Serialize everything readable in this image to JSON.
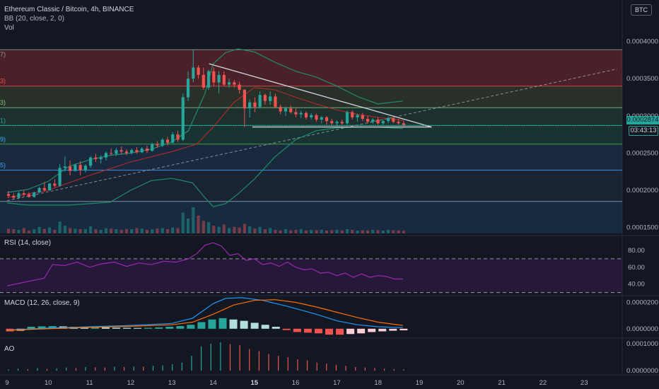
{
  "header": {
    "symbol": "Ethereum Classic / Bitcoin, 4h, BINANCE",
    "bb_legend": "BB (20, close, 2, 0)",
    "vol_legend": "Vol",
    "currency_badge": "BTC"
  },
  "panes": {
    "rsi_legend": "RSI (14, close)",
    "macd_legend": "MACD (12, 26, close, 9)",
    "ao_legend": "AO"
  },
  "fib_edge_labels": [
    "7)",
    "3)",
    "3)",
    "1)",
    "9)",
    "5)"
  ],
  "last_price": {
    "value": "0.0002874",
    "countdown": "03:43:13"
  },
  "colors": {
    "background": "#131722",
    "bull": "#26a69a",
    "bear": "#ef5350",
    "bb_band": "#1e8c6a",
    "rsi_line": "#9c27b0",
    "macd_line": "#2196f3",
    "signal_line": "#ff6d00",
    "trend_line": "#d1d4dc"
  },
  "chart_data": [
    {
      "type": "candlestick",
      "title": "Ethereum Classic / Bitcoin, 4h, BINANCE",
      "x_ticks": [
        "9",
        "10",
        "11",
        "12",
        "13",
        "14",
        "15",
        "16",
        "17",
        "18",
        "19",
        "20",
        "21",
        "22",
        "23"
      ],
      "y_ticks": [
        "0.0004000",
        "0.0003500",
        "0.0003000",
        "0.0002500",
        "0.0002000",
        "0.0001500"
      ],
      "ylim": [
        0.000142,
        0.000412
      ],
      "fib_levels": [
        0.000389,
        0.00034,
        0.000311,
        0.000287,
        0.000262,
        0.000227,
        0.000185
      ],
      "ohlc": [
        [
          0.000195,
          0.000199,
          0.00019,
          0.0001925
        ],
        [
          0.0001925,
          0.000196,
          0.000188,
          0.00019
        ],
        [
          0.00019,
          0.000198,
          0.000188,
          0.000196
        ],
        [
          0.000196,
          0.0002,
          0.000192,
          0.0001945
        ],
        [
          0.0001945,
          0.000197,
          0.00019,
          0.000191
        ],
        [
          0.000191,
          0.000198,
          0.00019,
          0.000197
        ],
        [
          0.000197,
          0.000205,
          0.000196,
          0.000203
        ],
        [
          0.000203,
          0.000211,
          0.000198,
          0.0002
        ],
        [
          0.0002,
          0.00021,
          0.000199,
          0.000209
        ],
        [
          0.000209,
          0.000215,
          0.000204,
          0.000206
        ],
        [
          0.000206,
          0.000235,
          0.000205,
          0.00023
        ],
        [
          0.00023,
          0.000245,
          0.000225,
          0.000232
        ],
        [
          0.000232,
          0.00024,
          0.00022,
          0.000226
        ],
        [
          0.000226,
          0.000236,
          0.000225,
          0.000234
        ],
        [
          0.000234,
          0.000239,
          0.00022,
          0.000227
        ],
        [
          0.000227,
          0.000235,
          0.000224,
          0.000233
        ],
        [
          0.000233,
          0.000246,
          0.00023,
          0.000244
        ],
        [
          0.000244,
          0.000249,
          0.000238,
          0.000242
        ],
        [
          0.000242,
          0.000247,
          0.000236,
          0.000244
        ],
        [
          0.000244,
          0.000252,
          0.00024,
          0.00025
        ],
        [
          0.00025,
          0.000256,
          0.000247,
          0.000249
        ],
        [
          0.000249,
          0.000257,
          0.000246,
          0.000254
        ],
        [
          0.000254,
          0.000259,
          0.000249,
          0.000252
        ],
        [
          0.000252,
          0.000255,
          0.000247,
          0.00025
        ],
        [
          0.00025,
          0.000256,
          0.000248,
          0.000254
        ],
        [
          0.000254,
          0.000258,
          0.000249,
          0.000251
        ],
        [
          0.000251,
          0.000258,
          0.00025,
          0.000256
        ],
        [
          0.000256,
          0.00026,
          0.00025,
          0.000253
        ],
        [
          0.000253,
          0.000264,
          0.000252,
          0.000262
        ],
        [
          0.000262,
          0.000266,
          0.000257,
          0.00026
        ],
        [
          0.00026,
          0.00027,
          0.000258,
          0.000268
        ],
        [
          0.000268,
          0.000272,
          0.00026,
          0.000264
        ],
        [
          0.000264,
          0.000278,
          0.000263,
          0.000275
        ],
        [
          0.000275,
          0.00028,
          0.000265,
          0.000268
        ],
        [
          0.000268,
          0.00033,
          0.000266,
          0.000325
        ],
        [
          0.000325,
          0.00036,
          0.00032,
          0.00035
        ],
        [
          0.00035,
          0.000389,
          0.000345,
          0.000365
        ],
        [
          0.000365,
          0.000368,
          0.00035,
          0.000355
        ],
        [
          0.000355,
          0.000365,
          0.000335,
          0.000338
        ],
        [
          0.000338,
          0.000362,
          0.000335,
          0.00036
        ],
        [
          0.00036,
          0.000365,
          0.00034,
          0.000345
        ],
        [
          0.000345,
          0.00036,
          0.00033,
          0.000355
        ],
        [
          0.000355,
          0.00036,
          0.00034,
          0.000342
        ],
        [
          0.000342,
          0.00035,
          0.000338,
          0.000345
        ],
        [
          0.000345,
          0.000348,
          0.000338,
          0.000342
        ],
        [
          0.000342,
          0.000346,
          0.00033,
          0.000335
        ],
        [
          0.000335,
          0.000336,
          0.000285,
          0.00031
        ],
        [
          0.00031,
          0.000322,
          0.000298,
          0.000318
        ],
        [
          0.000318,
          0.000325,
          0.000305,
          0.000312
        ],
        [
          0.000312,
          0.000333,
          0.00031,
          0.000328
        ],
        [
          0.000328,
          0.00033,
          0.000315,
          0.00032
        ],
        [
          0.00032,
          0.000333,
          0.000315,
          0.000326
        ],
        [
          0.000326,
          0.00033,
          0.00031,
          0.000312
        ],
        [
          0.000312,
          0.000315,
          0.000302,
          0.000306
        ],
        [
          0.000306,
          0.000312,
          0.0003,
          0.00031
        ],
        [
          0.00031,
          0.000314,
          0.000303,
          0.000305
        ],
        [
          0.000305,
          0.00031,
          0.000298,
          0.000302
        ],
        [
          0.000302,
          0.000307,
          0.000297,
          0.000304
        ],
        [
          0.000304,
          0.000306,
          0.000295,
          0.000298
        ],
        [
          0.000298,
          0.000304,
          0.000295,
          0.000301
        ],
        [
          0.000301,
          0.000303,
          0.000292,
          0.000295
        ],
        [
          0.000295,
          0.0003,
          0.00029,
          0.000298
        ],
        [
          0.000298,
          0.0003,
          0.000288,
          0.000293
        ],
        [
          0.000293,
          0.000296,
          0.000287,
          0.00029
        ],
        [
          0.00029,
          0.000294,
          0.000286,
          0.000292
        ],
        [
          0.000292,
          0.000295,
          0.000288,
          0.00029
        ],
        [
          0.00029,
          0.000307,
          0.000288,
          0.000305
        ],
        [
          0.000305,
          0.000307,
          0.000295,
          0.000298
        ],
        [
          0.000298,
          0.000303,
          0.000292,
          0.000301
        ],
        [
          0.000301,
          0.000304,
          0.000293,
          0.000296
        ],
        [
          0.000296,
          0.0003,
          0.00029,
          0.000292
        ],
        [
          0.000292,
          0.000297,
          0.000289,
          0.000295
        ],
        [
          0.000295,
          0.000298,
          0.000288,
          0.00029
        ],
        [
          0.00029,
          0.000295,
          0.000288,
          0.000293
        ],
        [
          0.000293,
          0.000299,
          0.00029,
          0.000297
        ],
        [
          0.000297,
          0.0003,
          0.00029,
          0.000292
        ],
        [
          0.000292,
          0.000296,
          0.000288,
          0.00029
        ],
        [
          0.00029,
          0.000294,
          0.000286,
          0.0002874
        ]
      ],
      "bb_upper": [
        [
          9.0,
          0.000197
        ],
        [
          9.5,
          0.000201
        ],
        [
          10.0,
          0.000212
        ],
        [
          10.5,
          0.000232
        ],
        [
          11.0,
          0.000241
        ],
        [
          11.5,
          0.000247
        ],
        [
          12.0,
          0.00025
        ],
        [
          12.5,
          0.000255
        ],
        [
          13.0,
          0.000265
        ],
        [
          13.4,
          0.00028
        ],
        [
          13.8,
          0.00033
        ],
        [
          14.0,
          0.00037
        ],
        [
          14.3,
          0.000385
        ],
        [
          14.6,
          0.00039
        ],
        [
          15.0,
          0.000386
        ],
        [
          15.5,
          0.000372
        ],
        [
          16.0,
          0.00036
        ],
        [
          16.5,
          0.000352
        ],
        [
          17.0,
          0.00034
        ],
        [
          17.5,
          0.000326
        ],
        [
          18.0,
          0.000316
        ],
        [
          18.6,
          0.00032
        ]
      ],
      "bb_basis": [
        [
          9.0,
          0.00019
        ],
        [
          10.0,
          0.0002
        ],
        [
          11.0,
          0.00022
        ],
        [
          12.0,
          0.000238
        ],
        [
          13.0,
          0.000252
        ],
        [
          13.6,
          0.000262
        ],
        [
          14.0,
          0.000285
        ],
        [
          14.5,
          0.000318
        ],
        [
          15.0,
          0.000338
        ],
        [
          15.5,
          0.000335
        ],
        [
          16.0,
          0.000325
        ],
        [
          16.5,
          0.000316
        ],
        [
          17.0,
          0.000308
        ],
        [
          17.5,
          0.000302
        ],
        [
          18.0,
          0.000298
        ],
        [
          18.6,
          0.000294
        ]
      ],
      "bb_lower": [
        [
          9.0,
          0.000183
        ],
        [
          9.5,
          0.00018
        ],
        [
          10.0,
          0.00018
        ],
        [
          10.5,
          0.00018
        ],
        [
          11.0,
          0.000182
        ],
        [
          11.5,
          0.000184
        ],
        [
          12.0,
          0.0002
        ],
        [
          12.5,
          0.000213
        ],
        [
          13.0,
          0.000216
        ],
        [
          13.5,
          0.00021
        ],
        [
          13.8,
          0.00019
        ],
        [
          14.0,
          0.000178
        ],
        [
          14.3,
          0.000182
        ],
        [
          14.6,
          0.000195
        ],
        [
          15.0,
          0.000215
        ],
        [
          15.5,
          0.000245
        ],
        [
          16.0,
          0.000268
        ],
        [
          16.5,
          0.00028
        ],
        [
          17.0,
          0.000284
        ],
        [
          17.5,
          0.000285
        ],
        [
          18.0,
          0.000285
        ],
        [
          18.6,
          0.000283
        ]
      ],
      "trendline_upper": [
        [
          13.9,
          0.00037
        ],
        [
          19.3,
          0.000285
        ]
      ],
      "trendline_lower": [
        [
          14.95,
          0.000285
        ],
        [
          19.3,
          0.000285
        ]
      ],
      "support_dashed": [
        [
          9.0,
          0.000186
        ],
        [
          23.8,
          0.000363
        ]
      ],
      "volume": [
        16,
        14,
        12,
        18,
        10,
        14,
        22,
        15,
        20,
        12,
        40,
        26,
        18,
        16,
        14,
        15,
        24,
        14,
        12,
        18,
        16,
        14,
        12,
        15,
        14,
        18,
        16,
        12,
        14,
        16,
        18,
        14,
        20,
        18,
        70,
        50,
        88,
        60,
        42,
        38,
        26,
        22,
        30,
        18,
        22,
        20,
        32,
        24,
        16,
        22,
        14,
        18,
        12,
        10,
        14,
        10,
        12,
        14,
        10,
        12,
        11,
        12,
        10,
        11,
        12,
        10,
        14,
        12,
        10,
        11,
        10,
        12,
        11,
        10,
        12,
        11,
        10,
        9
      ]
    },
    {
      "type": "line",
      "title": "RSI (14, close)",
      "y_ticks": [
        "80.00",
        "60.00",
        "40.00"
      ],
      "ylim": [
        28,
        95
      ],
      "bands": [
        70,
        30
      ],
      "points": [
        [
          9.0,
          38
        ],
        [
          9.3,
          41
        ],
        [
          9.6,
          44
        ],
        [
          9.9,
          47
        ],
        [
          10.1,
          63
        ],
        [
          10.4,
          62
        ],
        [
          10.7,
          66
        ],
        [
          11.0,
          60
        ],
        [
          11.3,
          64
        ],
        [
          11.6,
          66
        ],
        [
          11.9,
          61
        ],
        [
          12.2,
          65
        ],
        [
          12.5,
          63
        ],
        [
          12.8,
          67
        ],
        [
          13.1,
          66
        ],
        [
          13.4,
          70
        ],
        [
          13.6,
          76
        ],
        [
          13.8,
          86
        ],
        [
          14.0,
          89
        ],
        [
          14.2,
          85
        ],
        [
          14.4,
          74
        ],
        [
          14.6,
          76
        ],
        [
          14.8,
          68
        ],
        [
          15.0,
          70
        ],
        [
          15.2,
          63
        ],
        [
          15.4,
          65
        ],
        [
          15.6,
          61
        ],
        [
          15.8,
          66
        ],
        [
          16.0,
          60
        ],
        [
          16.2,
          57
        ],
        [
          16.4,
          58
        ],
        [
          16.6,
          53
        ],
        [
          16.8,
          54
        ],
        [
          17.0,
          50
        ],
        [
          17.2,
          53
        ],
        [
          17.4,
          48
        ],
        [
          17.6,
          52
        ],
        [
          17.8,
          48
        ],
        [
          18.0,
          50
        ],
        [
          18.2,
          49
        ],
        [
          18.4,
          46
        ],
        [
          18.6,
          46
        ]
      ]
    },
    {
      "type": "bar",
      "title": "MACD (12, 26, close, 9)",
      "y_ticks": [
        "0.0000200",
        "0.0000000"
      ],
      "ylim": [
        -6e-06,
        2.4e-05
      ],
      "macd_line": [
        [
          9.0,
          -1e-06
        ],
        [
          10.0,
          5e-07
        ],
        [
          11.0,
          1.5e-06
        ],
        [
          12.0,
          2.5e-06
        ],
        [
          13.0,
          4e-06
        ],
        [
          13.5,
          8e-06
        ],
        [
          14.0,
          1.9e-05
        ],
        [
          14.3,
          2.3e-05
        ],
        [
          14.7,
          2.35e-05
        ],
        [
          15.2,
          2.15e-05
        ],
        [
          15.8,
          1.7e-05
        ],
        [
          16.5,
          1.1e-05
        ],
        [
          17.0,
          6e-06
        ],
        [
          17.5,
          3e-06
        ],
        [
          18.0,
          1.5e-06
        ],
        [
          18.6,
          8e-07
        ]
      ],
      "signal_line": [
        [
          9.0,
          -1.2e-06
        ],
        [
          10.0,
          0.0
        ],
        [
          11.0,
          1e-06
        ],
        [
          12.0,
          1.8e-06
        ],
        [
          13.0,
          3e-06
        ],
        [
          13.5,
          5e-06
        ],
        [
          14.0,
          1.1e-05
        ],
        [
          14.5,
          1.8e-05
        ],
        [
          15.0,
          2.15e-05
        ],
        [
          15.5,
          2.2e-05
        ],
        [
          16.0,
          2e-05
        ],
        [
          16.5,
          1.65e-05
        ],
        [
          17.0,
          1.25e-05
        ],
        [
          17.5,
          8.5e-06
        ],
        [
          18.0,
          5e-06
        ],
        [
          18.6,
          2.5e-06
        ]
      ],
      "histogram": [
        -2e-06,
        -1.5e-06,
        1.5e-06,
        1.8e-06,
        2e-06,
        1.8e-06,
        1.5e-06,
        1e-06,
        1.2e-06,
        1e-06,
        8e-07,
        7e-07,
        6e-07,
        7e-07,
        1e-06,
        1.5e-06,
        2e-06,
        3e-06,
        5e-06,
        7e-06,
        8e-06,
        7e-06,
        6e-06,
        4.5e-06,
        3e-06,
        1.5e-06,
        -1e-06,
        -2.5e-06,
        -3e-06,
        -3.5e-06,
        -4.5e-06,
        -4.5e-06,
        -4e-06,
        -3.5e-06,
        -2.5e-06,
        -2e-06,
        -1.5e-06,
        -1.2e-06
      ]
    },
    {
      "type": "bar",
      "title": "AO",
      "y_ticks": [
        "0.0001000",
        "0.0000000"
      ],
      "ylim": [
        -1e-05,
        0.00011
      ],
      "values": [
        5e-06,
        8e-06,
        6e-06,
        1e-05,
        7e-06,
        9e-06,
        1.2e-05,
        1e-05,
        1.4e-05,
        1.3e-05,
        1.2e-05,
        1.5e-05,
        1.4e-05,
        1.6e-05,
        1.5e-05,
        1.8e-05,
        2e-05,
        2.4e-05,
        3e-05,
        5.5e-05,
        9e-05,
        0.0001,
        0.000105,
        9.8e-05,
        9.5e-05,
        8e-05,
        7.2e-05,
        6.2e-05,
        5.5e-05,
        5e-05,
        4.2e-05,
        3.8e-05,
        3e-05,
        2.6e-05,
        2.2e-05,
        1.8e-05,
        1.4e-05,
        1.2e-05,
        1e-05,
        8e-06,
        6e-06,
        5e-06
      ]
    }
  ]
}
